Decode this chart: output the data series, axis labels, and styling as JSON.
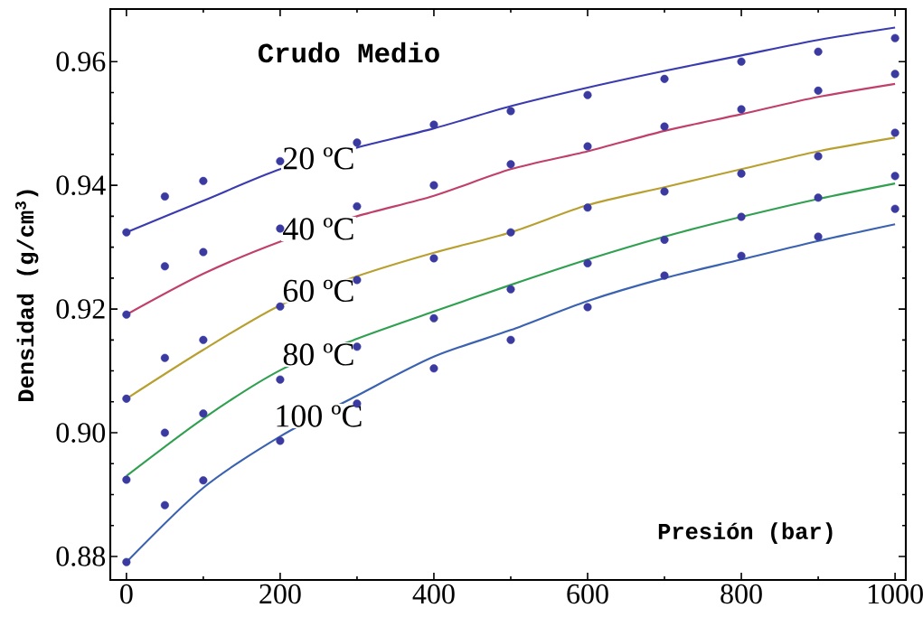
{
  "chart_data": {
    "type": "line",
    "title": "Crudo Medio",
    "xlabel": "Presión (bar)",
    "ylabel": "Densidad (g/cm$^{3}$)",
    "xlim": [
      -21,
      1014
    ],
    "ylim": [
      0.8762,
      0.9685
    ],
    "xticks": [
      0,
      200,
      400,
      600,
      800,
      1000
    ],
    "yticks": [
      0.88,
      {
        "value": 0.9,
        "label": "0.90"
      },
      0.92,
      0.94,
      0.96
    ],
    "grid": false,
    "legend": false,
    "series": [
      {
        "type": "scatter",
        "marker": "circle",
        "color": "#3a3aa0",
        "x": [
          0,
          50,
          100,
          200,
          300,
          400,
          500,
          600,
          700,
          800,
          900,
          1000
        ],
        "values": [
          0.9324,
          0.9382,
          0.9407,
          0.9439,
          0.9469,
          0.9498,
          0.952,
          0.9546,
          0.9572,
          0.96,
          0.9616,
          0.9638
        ]
      },
      {
        "type": "scatter",
        "marker": "circle",
        "color": "#3a3aa0",
        "x": [
          0,
          50,
          100,
          200,
          300,
          400,
          500,
          600,
          700,
          800,
          900,
          1000
        ],
        "values": [
          0.9191,
          0.9269,
          0.9292,
          0.933,
          0.9366,
          0.94,
          0.9434,
          0.9463,
          0.9495,
          0.9523,
          0.9553,
          0.958
        ]
      },
      {
        "type": "scatter",
        "marker": "circle",
        "color": "#3a3aa0",
        "x": [
          0,
          50,
          100,
          200,
          300,
          400,
          500,
          600,
          700,
          800,
          900,
          1000
        ],
        "values": [
          0.9055,
          0.9121,
          0.915,
          0.9204,
          0.9247,
          0.9282,
          0.9324,
          0.9364,
          0.939,
          0.9419,
          0.9447,
          0.9485
        ]
      },
      {
        "type": "scatter",
        "marker": "circle",
        "color": "#3a3aa0",
        "x": [
          0,
          50,
          100,
          200,
          300,
          400,
          500,
          600,
          700,
          800,
          900,
          1000
        ],
        "values": [
          0.8924,
          0.9,
          0.9031,
          0.9086,
          0.9139,
          0.9185,
          0.9232,
          0.9274,
          0.9312,
          0.9349,
          0.938,
          0.9415
        ]
      },
      {
        "type": "scatter",
        "marker": "circle",
        "color": "#3a3aa0",
        "x": [
          0,
          50,
          100,
          200,
          300,
          400,
          500,
          600,
          700,
          800,
          900,
          1000
        ],
        "values": [
          0.8791,
          0.8883,
          0.8923,
          0.8987,
          0.9047,
          0.9104,
          0.915,
          0.9203,
          0.9254,
          0.9286,
          0.9317,
          0.9362
        ]
      },
      {
        "name": "20 ºC",
        "color": "#3b3bb0",
        "x": [
          0,
          100,
          200,
          300,
          400,
          500,
          600,
          700,
          800,
          900,
          1000
        ],
        "values": [
          0.9324,
          0.9375,
          0.9426,
          0.9461,
          0.9492,
          0.9528,
          0.9558,
          0.9585,
          0.961,
          0.9635,
          0.9655
        ]
      },
      {
        "name": "40 ºC",
        "color": "#c0406a",
        "x": [
          0,
          100,
          200,
          300,
          400,
          500,
          600,
          700,
          800,
          900,
          1000
        ],
        "values": [
          0.9191,
          0.9257,
          0.9309,
          0.935,
          0.9383,
          0.9426,
          0.9455,
          0.9488,
          0.9515,
          0.9543,
          0.9564
        ]
      },
      {
        "name": "60 ºC",
        "color": "#b8a030",
        "x": [
          0,
          100,
          200,
          300,
          400,
          500,
          600,
          700,
          800,
          900,
          1000
        ],
        "values": [
          0.9055,
          0.9134,
          0.9206,
          0.9253,
          0.9291,
          0.9324,
          0.9368,
          0.9397,
          0.9426,
          0.9455,
          0.9477
        ]
      },
      {
        "name": "80 ºC",
        "color": "#30a050",
        "x": [
          0,
          100,
          200,
          300,
          400,
          500,
          600,
          700,
          800,
          900,
          1000
        ],
        "values": [
          0.893,
          0.9023,
          0.9101,
          0.9152,
          0.9196,
          0.9239,
          0.928,
          0.9317,
          0.9349,
          0.9378,
          0.9403
        ]
      },
      {
        "name": "100 ºC",
        "color": "#3a62b0",
        "x": [
          0,
          100,
          200,
          300,
          400,
          500,
          600,
          700,
          800,
          900,
          1000
        ],
        "values": [
          0.8791,
          0.8911,
          0.8994,
          0.906,
          0.9123,
          0.9166,
          0.9213,
          0.925,
          0.928,
          0.931,
          0.9337
        ]
      }
    ]
  }
}
